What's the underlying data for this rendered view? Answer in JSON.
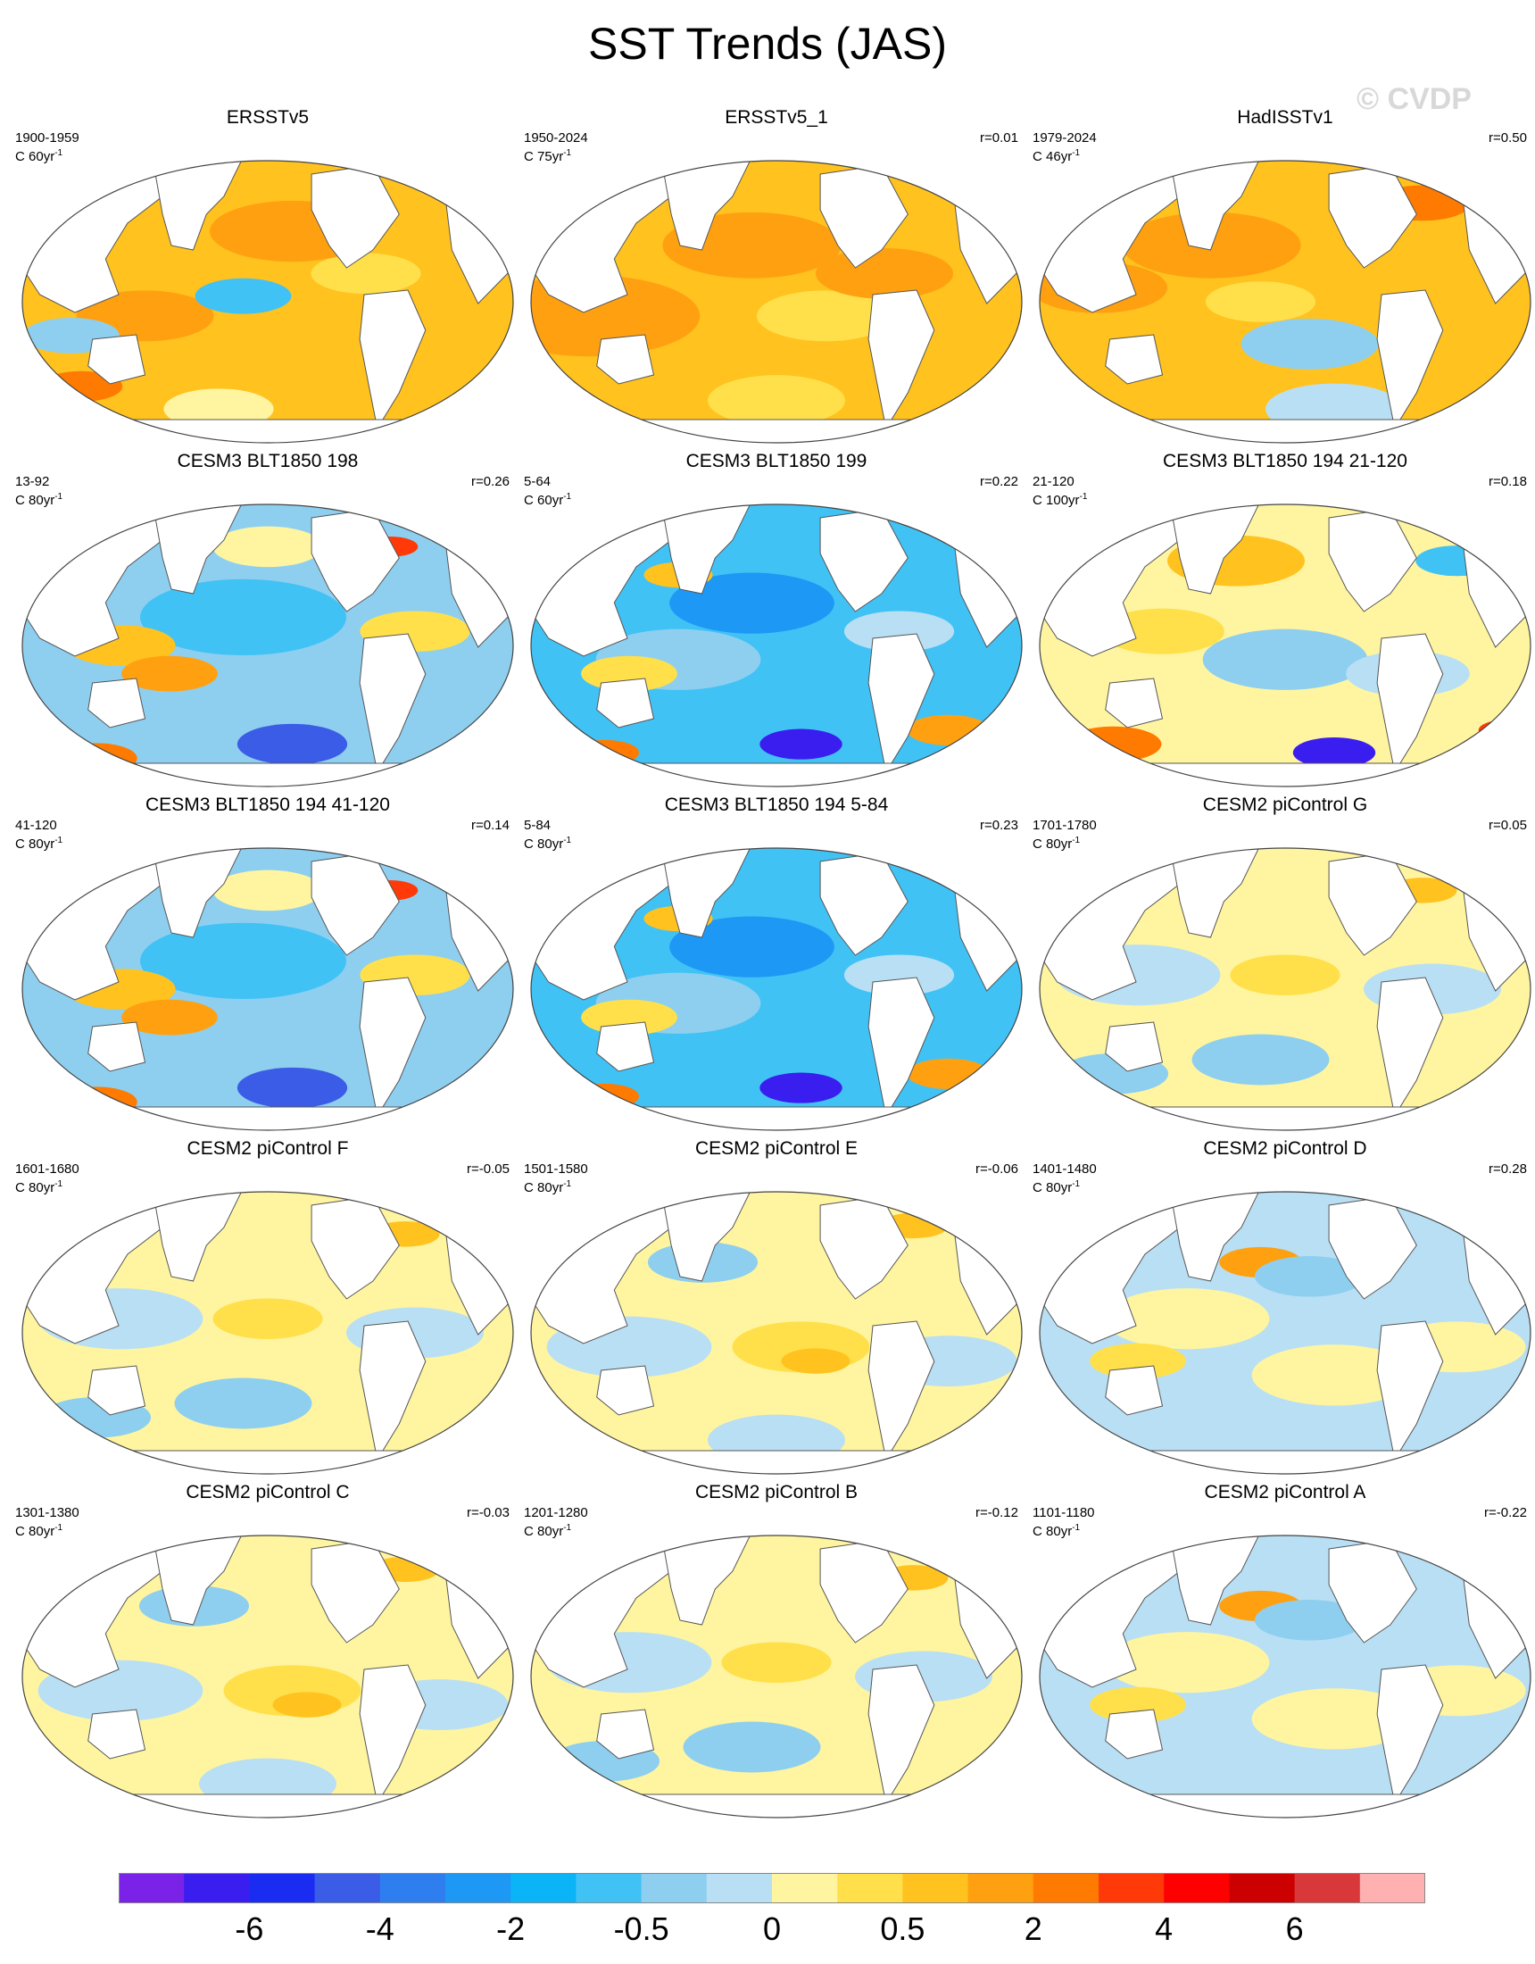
{
  "title": "SST Trends (JAS)",
  "watermark": "© CVDP",
  "units_prefix": "C",
  "panels": [
    {
      "title": "ERSSTv5",
      "years": "1900-1959",
      "units": "60yr",
      "r": "",
      "theme": "warm"
    },
    {
      "title": "ERSSTv5_1",
      "years": "1950-2024",
      "units": "75yr",
      "r": "r=0.01",
      "theme": "warm2"
    },
    {
      "title": "HadISSTv1",
      "years": "1979-2024",
      "units": "46yr",
      "r": "r=0.50",
      "theme": "warm3"
    },
    {
      "title": "CESM3 BLT1850 198",
      "years": "13-92",
      "units": "80yr",
      "r": "r=0.26",
      "theme": "cool"
    },
    {
      "title": "CESM3 BLT1850 199",
      "years": "5-64",
      "units": "60yr",
      "r": "r=0.22",
      "theme": "cool2"
    },
    {
      "title": "CESM3 BLT1850 194 21-120",
      "years": "21-120",
      "units": "100yr",
      "r": "r=0.18",
      "theme": "mixed"
    },
    {
      "title": "CESM3 BLT1850 194 41-120",
      "years": "41-120",
      "units": "80yr",
      "r": "r=0.14",
      "theme": "cool"
    },
    {
      "title": "CESM3 BLT1850 194 5-84",
      "years": "5-84",
      "units": "80yr",
      "r": "r=0.23",
      "theme": "cool2"
    },
    {
      "title": "CESM2 piControl G",
      "years": "1701-1780",
      "units": "80yr",
      "r": "r=0.05",
      "theme": "pale"
    },
    {
      "title": "CESM2 piControl F",
      "years": "1601-1680",
      "units": "80yr",
      "r": "r=-0.05",
      "theme": "pale"
    },
    {
      "title": "CESM2 piControl E",
      "years": "1501-1580",
      "units": "80yr",
      "r": "r=-0.06",
      "theme": "pale2"
    },
    {
      "title": "CESM2 piControl D",
      "years": "1401-1480",
      "units": "80yr",
      "r": "r=0.28",
      "theme": "pale3"
    },
    {
      "title": "CESM2 piControl C",
      "years": "1301-1380",
      "units": "80yr",
      "r": "r=-0.03",
      "theme": "pale2"
    },
    {
      "title": "CESM2 piControl B",
      "years": "1201-1280",
      "units": "80yr",
      "r": "r=-0.12",
      "theme": "pale"
    },
    {
      "title": "CESM2 piControl A",
      "years": "1101-1180",
      "units": "80yr",
      "r": "r=-0.22",
      "theme": "pale3"
    }
  ],
  "colorbar": {
    "colors": [
      "#7b22e8",
      "#3a1ef0",
      "#1a2cf2",
      "#3b5ce6",
      "#2e7ef0",
      "#1e98f5",
      "#0ab4f7",
      "#41c2f5",
      "#8ecff0",
      "#b9dff4",
      "#fff5a0",
      "#ffe04a",
      "#ffc21e",
      "#ffa010",
      "#ff7a00",
      "#ff3a08",
      "#ff0000",
      "#cc0000",
      "#d9383a",
      "#ffb0b0"
    ],
    "labels": [
      "-6",
      "-4",
      "-2",
      "-0.5",
      "0",
      "0.5",
      "2",
      "4",
      "6"
    ]
  }
}
